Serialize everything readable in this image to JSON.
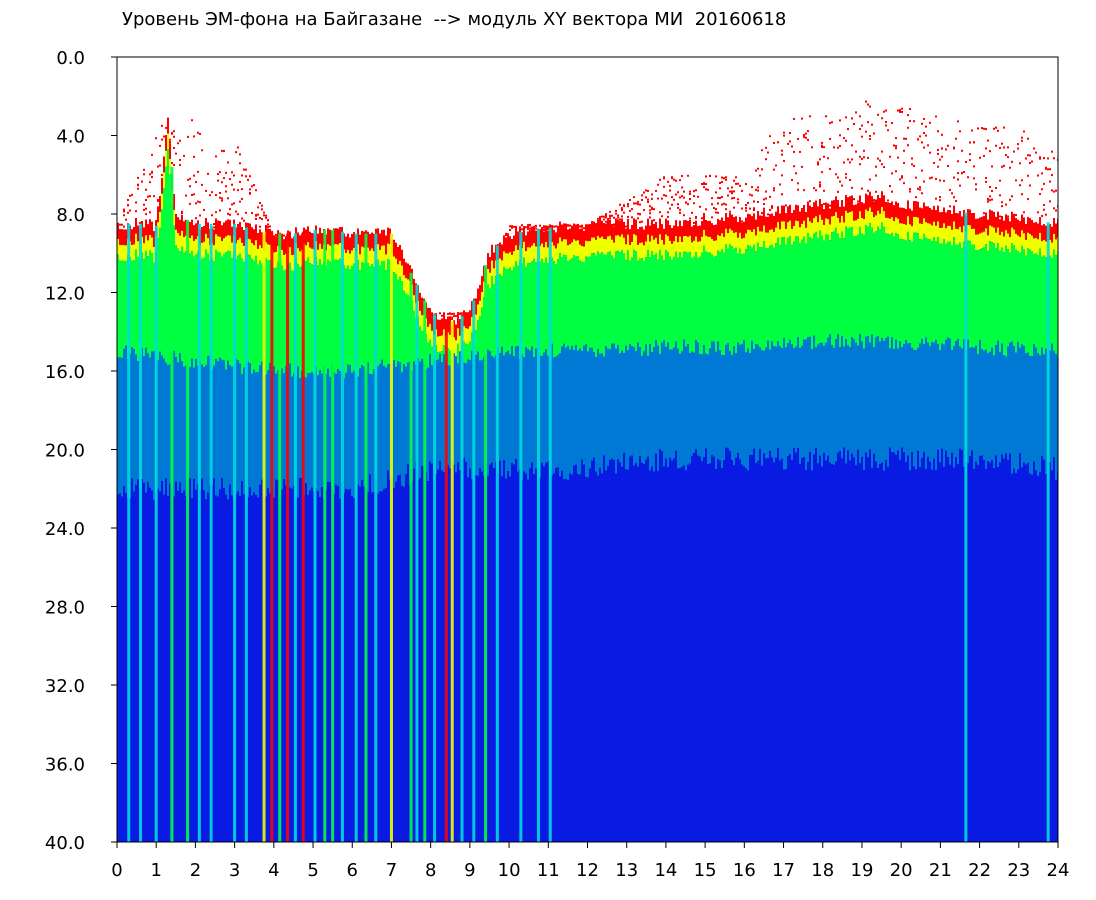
{
  "chart_data": {
    "type": "heatmap",
    "title": "Уровень ЭМ-фона на Байгазане  --> модуль XY вектора МИ  20160618",
    "xlabel": "",
    "ylabel": "",
    "xlim": [
      0,
      24
    ],
    "ylim": [
      40.0,
      0.0
    ],
    "y_axis_inverted": true,
    "grid": false,
    "x_ticks": [
      0,
      1,
      2,
      3,
      4,
      5,
      6,
      7,
      8,
      9,
      10,
      11,
      12,
      13,
      14,
      15,
      16,
      17,
      18,
      19,
      20,
      21,
      22,
      23,
      24
    ],
    "x_tick_labels": [
      "0",
      "1",
      "2",
      "3",
      "4",
      "5",
      "6",
      "7",
      "8",
      "9",
      "10",
      "11",
      "12",
      "13",
      "14",
      "15",
      "16",
      "17",
      "18",
      "19",
      "20",
      "21",
      "22",
      "23",
      "24"
    ],
    "y_ticks": [
      0,
      4,
      8,
      12,
      16,
      20,
      24,
      28,
      32,
      36,
      40
    ],
    "y_tick_labels": [
      "0.0",
      "4.0",
      "8.0",
      "12.0",
      "16.0",
      "20.0",
      "24.0",
      "28.0",
      "32.0",
      "36.0",
      "40.0"
    ],
    "colors": {
      "background": "#0000cc",
      "low": "#0a1ee6",
      "mid": "#00dcdc",
      "high": "#00ff40",
      "higher": "#f0ff00",
      "peak": "#ff0000"
    },
    "band_upper_edge": {
      "hours": [
        0,
        0.5,
        1,
        1.3,
        1.5,
        2,
        2.5,
        3,
        3.5,
        4,
        4.5,
        5,
        5.5,
        6,
        6.5,
        7,
        7.5,
        8,
        8.5,
        9,
        9.5,
        10,
        11,
        12,
        13,
        14,
        15,
        16,
        17,
        18,
        19,
        19.5,
        20,
        21,
        22,
        23,
        24
      ],
      "values": [
        8.5,
        8.5,
        8.6,
        3.2,
        8.0,
        8.5,
        8.5,
        8.5,
        8.8,
        9.0,
        9.0,
        8.8,
        8.8,
        9.0,
        9.0,
        9.0,
        11.0,
        13.0,
        13.5,
        13.0,
        10.0,
        9.0,
        8.7,
        8.6,
        8.5,
        8.5,
        8.3,
        8.2,
        7.8,
        7.5,
        7.2,
        7.0,
        7.5,
        7.8,
        8.0,
        8.2,
        8.5
      ]
    },
    "sporadic_upper_edge": {
      "hours": [
        0,
        1.2,
        1.5,
        2.0,
        2.5,
        3,
        4,
        5,
        6,
        7,
        8,
        9,
        10,
        12,
        14,
        16,
        17,
        18,
        19,
        19.5,
        20,
        21,
        22,
        23,
        24
      ],
      "values": [
        8.5,
        3.0,
        3.5,
        3.0,
        5.0,
        4.0,
        9.0,
        9.0,
        9.0,
        9.0,
        13.0,
        13.0,
        8.5,
        8.5,
        6.0,
        6.0,
        2.8,
        3.0,
        2.2,
        2.0,
        2.5,
        2.8,
        3.5,
        3.5,
        5.0
      ]
    },
    "green_band_lower_edge": {
      "hours": [
        0,
        2,
        4,
        6,
        8,
        10,
        12,
        14,
        16,
        18,
        20,
        22,
        24
      ],
      "values": [
        15.0,
        15.5,
        16.0,
        16.0,
        15.5,
        15.0,
        15.0,
        14.8,
        14.8,
        14.5,
        14.5,
        14.8,
        15.0
      ]
    },
    "cyan_band_lower_edge": {
      "hours": [
        0,
        2,
        4,
        6,
        8,
        10,
        12,
        14,
        16,
        18,
        20,
        22,
        24
      ],
      "values": [
        22.0,
        22.0,
        22.0,
        22.0,
        21.0,
        21.0,
        21.0,
        20.5,
        20.5,
        20.5,
        20.5,
        20.5,
        21.0
      ]
    },
    "full_height_streaks": [
      {
        "hour": 0.3,
        "color": "cyan"
      },
      {
        "hour": 0.6,
        "color": "cyan"
      },
      {
        "hour": 1.0,
        "color": "cyan"
      },
      {
        "hour": 1.4,
        "color": "green"
      },
      {
        "hour": 1.8,
        "color": "green"
      },
      {
        "hour": 2.1,
        "color": "cyan"
      },
      {
        "hour": 2.4,
        "color": "cyan"
      },
      {
        "hour": 3.0,
        "color": "cyan"
      },
      {
        "hour": 3.3,
        "color": "cyan"
      },
      {
        "hour": 3.75,
        "color": "yellow"
      },
      {
        "hour": 3.95,
        "color": "red"
      },
      {
        "hour": 4.15,
        "color": "green"
      },
      {
        "hour": 4.35,
        "color": "red"
      },
      {
        "hour": 4.55,
        "color": "cyan"
      },
      {
        "hour": 4.75,
        "color": "red"
      },
      {
        "hour": 5.05,
        "color": "cyan"
      },
      {
        "hour": 5.3,
        "color": "green"
      },
      {
        "hour": 5.5,
        "color": "green"
      },
      {
        "hour": 5.75,
        "color": "cyan"
      },
      {
        "hour": 6.1,
        "color": "cyan"
      },
      {
        "hour": 6.35,
        "color": "green"
      },
      {
        "hour": 6.6,
        "color": "cyan"
      },
      {
        "hour": 7.0,
        "color": "yellow"
      },
      {
        "hour": 7.5,
        "color": "green"
      },
      {
        "hour": 7.65,
        "color": "cyan"
      },
      {
        "hour": 7.85,
        "color": "green"
      },
      {
        "hour": 8.1,
        "color": "cyan"
      },
      {
        "hour": 8.4,
        "color": "red"
      },
      {
        "hour": 8.55,
        "color": "yellow"
      },
      {
        "hour": 8.8,
        "color": "cyan"
      },
      {
        "hour": 9.1,
        "color": "cyan"
      },
      {
        "hour": 9.4,
        "color": "green"
      },
      {
        "hour": 9.7,
        "color": "cyan"
      },
      {
        "hour": 10.3,
        "color": "cyan"
      },
      {
        "hour": 10.75,
        "color": "cyan"
      },
      {
        "hour": 11.05,
        "color": "cyan"
      },
      {
        "hour": 21.65,
        "color": "cyan"
      },
      {
        "hour": 23.75,
        "color": "cyan"
      }
    ]
  }
}
